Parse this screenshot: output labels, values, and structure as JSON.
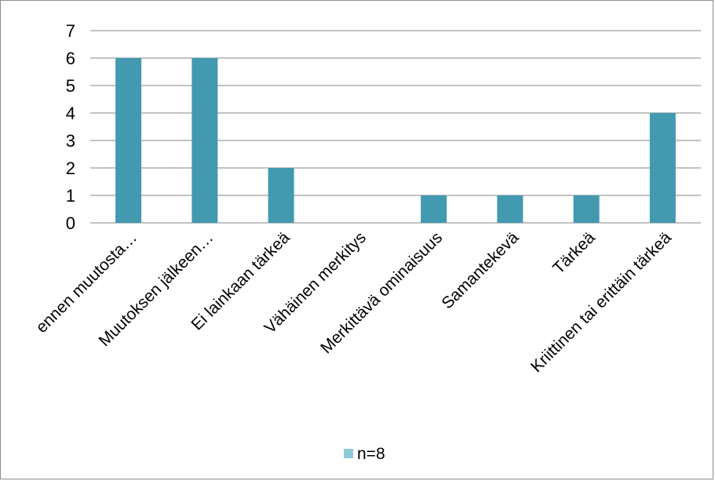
{
  "chart_data": {
    "type": "bar",
    "categories": [
      "ennen muutosta…",
      "Muutoksen jälkeen…",
      "Ei lainkaan tärkeä",
      "Vähäinen merkitys",
      "Merkittävä ominaisuus",
      "Samantekevä",
      "Tärkeä",
      "Kriittinen tai erittäin tärkeä"
    ],
    "series": [
      {
        "name": "n=8",
        "values": [
          6,
          6,
          2,
          0,
          1,
          1,
          1,
          4
        ]
      }
    ],
    "title": "",
    "xlabel": "",
    "ylabel": "",
    "ylim": [
      0,
      7
    ],
    "yticks": [
      0,
      1,
      2,
      3,
      4,
      5,
      6,
      7
    ],
    "grid": true,
    "legend": "bottom"
  },
  "colors": {
    "bar": "#4299b0",
    "legend_swatch": "#8fc8d9",
    "grid": "#868686"
  }
}
